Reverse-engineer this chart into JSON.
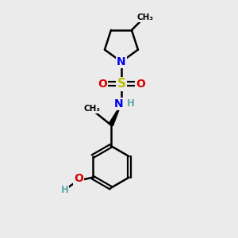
{
  "background_color": "#ebebeb",
  "atom_colors": {
    "C": "#000000",
    "N": "#0000ee",
    "O": "#dd0000",
    "S": "#bbbb00",
    "H": "#5faaaa"
  },
  "figsize": [
    3.0,
    3.0
  ],
  "dpi": 100
}
